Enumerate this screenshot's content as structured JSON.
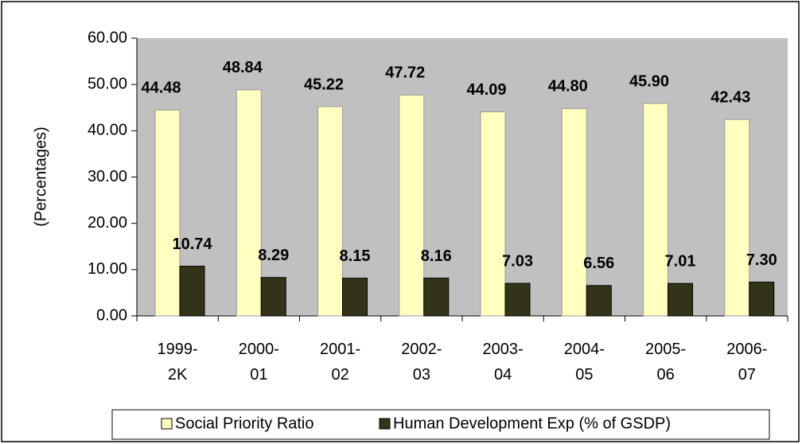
{
  "chart_data": {
    "type": "bar",
    "y_label": "(Percentages)",
    "categories": [
      "1999-2K",
      "2000-01",
      "2001-02",
      "2002-03",
      "2003-04",
      "2004-05",
      "2005-06",
      "2006-07"
    ],
    "series": [
      {
        "name": "Social Priority Ratio",
        "color": "#ffffc0",
        "values": [
          44.48,
          48.84,
          45.22,
          47.72,
          44.09,
          44.8,
          45.9,
          42.43
        ],
        "value_labels": [
          "44.48",
          "48.84",
          "45.22",
          "47.72",
          "44.09",
          "44.80",
          "45.90",
          "42.43"
        ]
      },
      {
        "name": "Human Development Exp (% of GSDP)",
        "color": "#333319",
        "values": [
          10.74,
          8.29,
          8.15,
          8.16,
          7.03,
          6.56,
          7.01,
          7.3
        ],
        "value_labels": [
          "10.74",
          "8.29",
          "8.15",
          "8.16",
          "7.03",
          "6.56",
          "7.01",
          "7.30"
        ]
      }
    ],
    "ylim": [
      0,
      60
    ],
    "yticks": [
      {
        "value": 0,
        "label": "0.00"
      },
      {
        "value": 10,
        "label": "10.00"
      },
      {
        "value": 20,
        "label": "20.00"
      },
      {
        "value": 30,
        "label": "30.00"
      },
      {
        "value": 40,
        "label": "40.00"
      },
      {
        "value": 50,
        "label": "50.00"
      },
      {
        "value": 60,
        "label": "60.00"
      }
    ],
    "plot_background": "#c0c0c0",
    "legend": "bottom"
  }
}
